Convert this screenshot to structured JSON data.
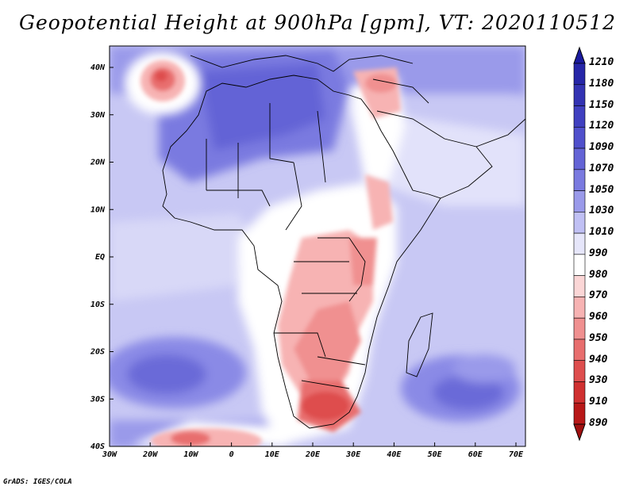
{
  "title": "Geopotential Height at 900hPa [gpm], VT: 2020110512",
  "footer": "GrADS: IGES/COLA",
  "lat_labels": [
    "40N",
    "30N",
    "20N",
    "10N",
    "EQ",
    "10S",
    "20S",
    "30S",
    "40S"
  ],
  "lon_labels": [
    "30W",
    "20W",
    "10W",
    "0",
    "10E",
    "20E",
    "30E",
    "40E",
    "50E",
    "60E",
    "70E"
  ],
  "colorbar": {
    "levels": [
      "1210",
      "1180",
      "1150",
      "1120",
      "1090",
      "1070",
      "1050",
      "1030",
      "1010",
      "990",
      "980",
      "970",
      "960",
      "950",
      "940",
      "930",
      "910",
      "890"
    ],
    "colors": [
      "#1a1a9e",
      "#2626a8",
      "#3333b3",
      "#4040c0",
      "#5050cc",
      "#6464d6",
      "#7a7ae0",
      "#9a9aea",
      "#c0c0f4",
      "#e6e6fa",
      "#ffffff",
      "#fbd6d6",
      "#f7b3b3",
      "#f09090",
      "#e86e6e",
      "#de4e4e",
      "#d03030",
      "#b81818",
      "#a01010"
    ]
  },
  "colors": {
    "deep_blue": "#5a5ad8",
    "mid_blue": "#8a8ae6",
    "light_blue": "#c8c8f4",
    "pale_blue": "#e2e2fa",
    "pink": "#f4b8b8",
    "red": "#e06060",
    "dark_red": "#c83030"
  }
}
